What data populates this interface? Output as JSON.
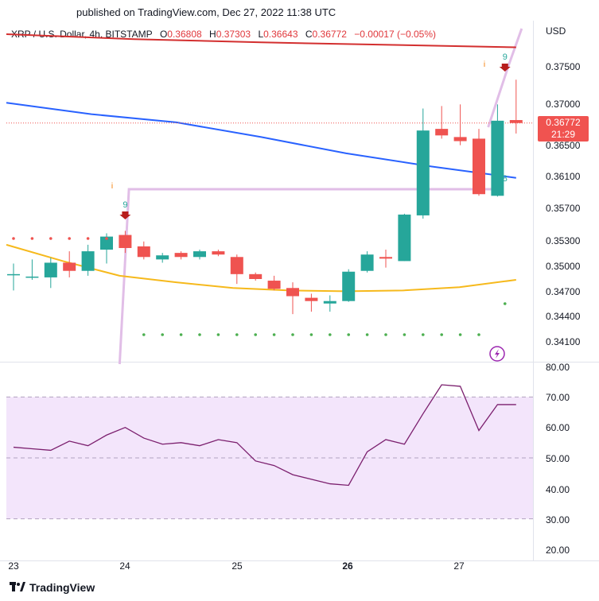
{
  "header": {
    "published": "published on TradingView.com, Dec 27, 2022 11:38 UTC"
  },
  "legend": {
    "symbol": "XRP / U.S. Dollar, 4h, BITSTAMP",
    "o_label": "O",
    "o_value": "0.36808",
    "h_label": "H",
    "h_value": "0.37303",
    "l_label": "L",
    "l_value": "0.36643",
    "c_label": "C",
    "c_value": "0.36772",
    "change": "−0.00017 (−0.05%)"
  },
  "price_axis": {
    "currency": "USD",
    "ticks": [
      "0.37500",
      "0.37000",
      "0.36500",
      "0.36100",
      "0.35700",
      "0.35300",
      "0.35000",
      "0.34700",
      "0.34400",
      "0.34100"
    ],
    "last_price": "0.36772",
    "countdown": "21:29"
  },
  "rsi_axis": {
    "ticks": [
      "80.00",
      "70.00",
      "60.00",
      "50.00",
      "40.00",
      "30.00",
      "20.00"
    ]
  },
  "time_axis": {
    "ticks": [
      "23",
      "24",
      "25",
      "26",
      "27"
    ],
    "bold": [
      "26"
    ]
  },
  "annotations": {
    "td_top": [
      "9",
      "9"
    ],
    "td_bottom": [
      "8"
    ],
    "info_marks": [
      "i",
      "i"
    ]
  },
  "footer": {
    "brand": "TradingView"
  },
  "colors": {
    "up": "#26a69a",
    "down": "#ef5350",
    "ma_red": "#d32f2f",
    "ma_blue": "#2962ff",
    "ma_yellow": "#f6b91c",
    "envelope": "#e1bee7",
    "rsi_line": "#7b1f6e",
    "rsi_band": "#f3e5fb",
    "dots_red": "#ef5350",
    "dots_green": "#4caf50",
    "lightning": "#9c27b0"
  },
  "chart_data": {
    "type": "candlestick",
    "ylim": [
      0.3395,
      0.3795
    ],
    "candles": [
      {
        "o": 0.3492,
        "h": 0.3505,
        "l": 0.3472,
        "c": 0.3492
      },
      {
        "o": 0.3489,
        "h": 0.351,
        "l": 0.3485,
        "c": 0.3489
      },
      {
        "o": 0.3488,
        "h": 0.3512,
        "l": 0.3475,
        "c": 0.3506
      },
      {
        "o": 0.3506,
        "h": 0.352,
        "l": 0.3488,
        "c": 0.3496
      },
      {
        "o": 0.3496,
        "h": 0.3528,
        "l": 0.349,
        "c": 0.352
      },
      {
        "o": 0.3522,
        "h": 0.3542,
        "l": 0.3505,
        "c": 0.3538
      },
      {
        "o": 0.354,
        "h": 0.3545,
        "l": 0.3518,
        "c": 0.3524
      },
      {
        "o": 0.3526,
        "h": 0.3532,
        "l": 0.351,
        "c": 0.3513
      },
      {
        "o": 0.351,
        "h": 0.3518,
        "l": 0.3506,
        "c": 0.3515
      },
      {
        "o": 0.3518,
        "h": 0.352,
        "l": 0.351,
        "c": 0.3513
      },
      {
        "o": 0.3513,
        "h": 0.3522,
        "l": 0.351,
        "c": 0.352
      },
      {
        "o": 0.352,
        "h": 0.3522,
        "l": 0.3514,
        "c": 0.3516
      },
      {
        "o": 0.3513,
        "h": 0.3516,
        "l": 0.348,
        "c": 0.3492
      },
      {
        "o": 0.3492,
        "h": 0.3494,
        "l": 0.3484,
        "c": 0.3486
      },
      {
        "o": 0.3484,
        "h": 0.349,
        "l": 0.3472,
        "c": 0.3474
      },
      {
        "o": 0.3475,
        "h": 0.3482,
        "l": 0.3443,
        "c": 0.3465
      },
      {
        "o": 0.3463,
        "h": 0.3468,
        "l": 0.3446,
        "c": 0.3459
      },
      {
        "o": 0.3456,
        "h": 0.3466,
        "l": 0.3446,
        "c": 0.3459
      },
      {
        "o": 0.3459,
        "h": 0.3498,
        "l": 0.3458,
        "c": 0.3495
      },
      {
        "o": 0.3496,
        "h": 0.352,
        "l": 0.3494,
        "c": 0.3516
      },
      {
        "o": 0.3513,
        "h": 0.3522,
        "l": 0.35,
        "c": 0.3511
      },
      {
        "o": 0.3508,
        "h": 0.3566,
        "l": 0.3508,
        "c": 0.3565
      },
      {
        "o": 0.3564,
        "h": 0.3695,
        "l": 0.356,
        "c": 0.3668
      },
      {
        "o": 0.367,
        "h": 0.3698,
        "l": 0.3658,
        "c": 0.3662
      },
      {
        "o": 0.366,
        "h": 0.37,
        "l": 0.365,
        "c": 0.3655
      },
      {
        "o": 0.3658,
        "h": 0.367,
        "l": 0.3588,
        "c": 0.359
      },
      {
        "o": 0.3588,
        "h": 0.37,
        "l": 0.3587,
        "c": 0.368
      },
      {
        "o": 0.36808,
        "h": 0.37303,
        "l": 0.36643,
        "c": 0.36772
      }
    ],
    "ma_red": [
      0.3786,
      0.378,
      0.3776,
      0.3773,
      0.377
    ],
    "ma_blue": [
      0.3702,
      0.3688,
      0.3678,
      0.366,
      0.364,
      0.3624,
      0.361
    ],
    "ma_yellow": [
      0.3528,
      0.3508,
      0.349,
      0.3482,
      0.3475,
      0.3472,
      0.3471,
      0.3472,
      0.3476,
      0.3485
    ],
    "rsi": [
      53.5,
      53.0,
      52.5,
      55.5,
      54.0,
      57.5,
      60.0,
      56.5,
      54.5,
      55.0,
      54.0,
      56.0,
      55.0,
      49.0,
      47.5,
      44.5,
      43.0,
      41.5,
      41.0,
      52.0,
      56.0,
      54.5,
      64.5,
      74.0,
      73.5,
      59.0,
      67.5,
      67.5
    ],
    "rsi_ylim": [
      15,
      81
    ]
  }
}
